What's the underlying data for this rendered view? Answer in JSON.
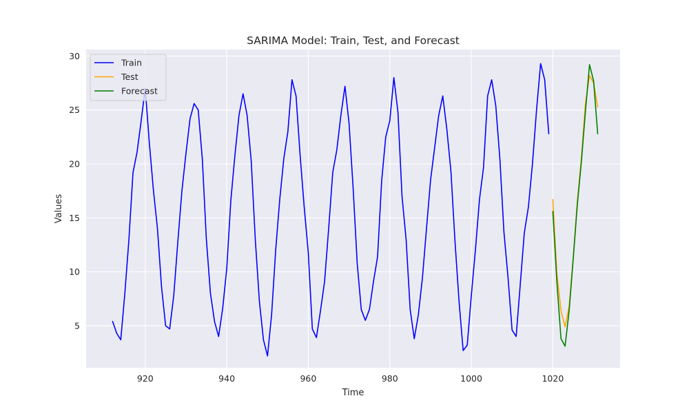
{
  "chart_data": {
    "type": "line",
    "title": "SARIMA Model: Train, Test, and Forecast",
    "xlabel": "Time",
    "ylabel": "Values",
    "xlim": [
      905.5,
      1036.5
    ],
    "ylim": [
      1.1,
      30.6
    ],
    "xticks": [
      920,
      940,
      960,
      980,
      1000,
      1020
    ],
    "yticks": [
      5,
      10,
      15,
      20,
      25,
      30
    ],
    "grid": true,
    "legend_position": "upper-left",
    "series": [
      {
        "name": "Train",
        "color": "#0000ff",
        "x": [
          912,
          913,
          914,
          915,
          916,
          917,
          918,
          919,
          920,
          921,
          922,
          923,
          924,
          925,
          926,
          927,
          928,
          929,
          930,
          931,
          932,
          933,
          934,
          935,
          936,
          937,
          938,
          939,
          940,
          941,
          942,
          943,
          944,
          945,
          946,
          947,
          948,
          949,
          950,
          951,
          952,
          953,
          954,
          955,
          956,
          957,
          958,
          959,
          960,
          961,
          962,
          963,
          964,
          965,
          966,
          967,
          968,
          969,
          970,
          971,
          972,
          973,
          974,
          975,
          976,
          977,
          978,
          979,
          980,
          981,
          982,
          983,
          984,
          985,
          986,
          987,
          988,
          989,
          990,
          991,
          992,
          993,
          994,
          995,
          996,
          997,
          998,
          999,
          1000,
          1001,
          1002,
          1003,
          1004,
          1005,
          1006,
          1007,
          1008,
          1009,
          1010,
          1011,
          1012,
          1013,
          1014,
          1015,
          1016,
          1017,
          1018,
          1019
        ],
        "values": [
          5.4,
          4.3,
          3.7,
          8.0,
          13.0,
          19.2,
          21.1,
          24.0,
          27.0,
          22.0,
          17.6,
          14.0,
          8.6,
          5.0,
          4.7,
          7.8,
          12.8,
          17.5,
          21.0,
          24.2,
          25.6,
          25.0,
          20.5,
          13.0,
          8.0,
          5.4,
          4.0,
          6.6,
          10.3,
          16.6,
          20.8,
          24.5,
          26.5,
          24.5,
          20.3,
          13.0,
          7.3,
          3.7,
          2.2,
          6.0,
          12.0,
          16.7,
          20.5,
          23.0,
          27.8,
          26.3,
          20.8,
          16.0,
          11.8,
          4.7,
          3.9,
          6.4,
          9.1,
          14.0,
          19.2,
          21.3,
          24.5,
          27.2,
          23.8,
          17.8,
          10.8,
          6.5,
          5.5,
          6.5,
          9.1,
          11.4,
          18.4,
          22.5,
          24.0,
          28.0,
          24.8,
          17.0,
          13.0,
          6.5,
          3.8,
          6.0,
          9.4,
          14.0,
          18.5,
          21.5,
          24.5,
          26.3,
          23.2,
          19.3,
          12.8,
          7.2,
          2.7,
          3.2,
          7.8,
          12.0,
          16.7,
          19.7,
          26.3,
          27.8,
          25.4,
          20.5,
          13.7,
          9.5,
          4.6,
          4.0,
          8.8,
          13.6,
          16.0,
          20.0,
          25.0,
          29.3,
          27.8,
          22.8
        ]
      },
      {
        "name": "Test",
        "color": "#ffa500",
        "x": [
          1020,
          1021,
          1022,
          1023,
          1024,
          1025,
          1026,
          1027,
          1028,
          1029,
          1030,
          1031
        ],
        "values": [
          16.7,
          9.8,
          6.4,
          4.9,
          6.8,
          11.3,
          16.5,
          20.5,
          25.6,
          28.2,
          27.5,
          25.3
        ]
      },
      {
        "name": "Forecast",
        "color": "#008000",
        "x": [
          1020,
          1021,
          1022,
          1023,
          1024,
          1025,
          1026,
          1027,
          1028,
          1029,
          1030,
          1031
        ],
        "values": [
          15.6,
          9.0,
          3.8,
          3.1,
          6.4,
          11.2,
          16.2,
          20.2,
          24.9,
          29.2,
          27.7,
          22.8
        ]
      }
    ]
  }
}
